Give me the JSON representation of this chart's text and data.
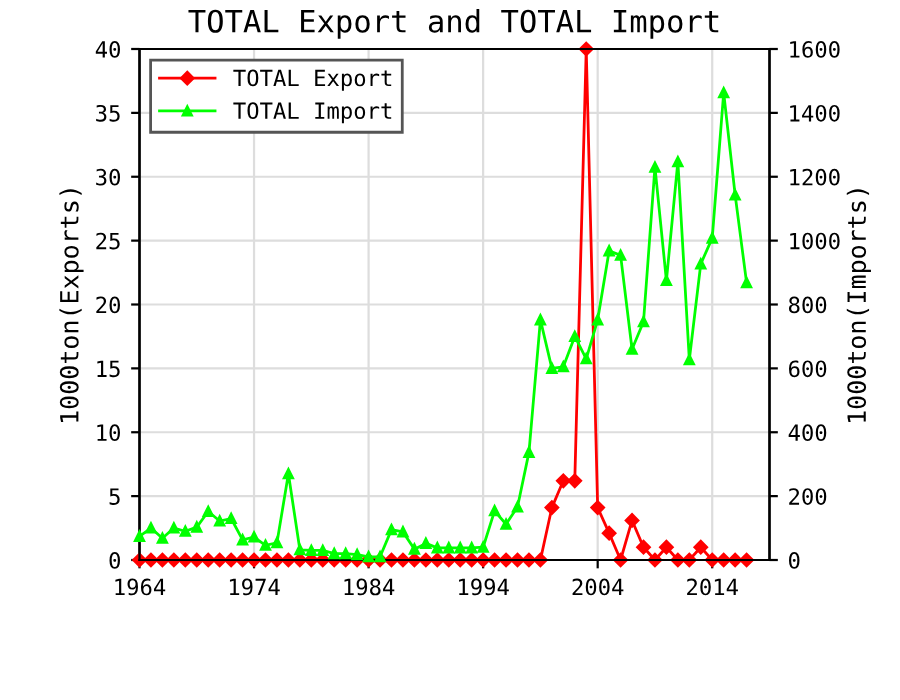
{
  "chart_data": {
    "type": "line",
    "title": "TOTAL Export and TOTAL Import",
    "ylabel": "1000ton(Exports)",
    "y2label": "1000ton(Imports)",
    "x": [
      1964,
      1965,
      1966,
      1967,
      1968,
      1969,
      1970,
      1971,
      1972,
      1973,
      1974,
      1975,
      1976,
      1977,
      1978,
      1979,
      1980,
      1981,
      1982,
      1983,
      1984,
      1985,
      1986,
      1987,
      1988,
      1989,
      1990,
      1991,
      1992,
      1993,
      1994,
      1995,
      1996,
      1997,
      1998,
      1999,
      2000,
      2001,
      2002,
      2003,
      2004,
      2005,
      2006,
      2007,
      2008,
      2009,
      2010,
      2011,
      2012,
      2013,
      2014,
      2015,
      2016,
      2017
    ],
    "series": [
      {
        "name": "TOTAL Export",
        "color": "#ff0000",
        "marker": "diamond",
        "values": [
          0,
          0,
          0,
          0,
          0,
          0,
          0,
          0,
          0,
          0,
          0,
          0,
          0,
          0,
          0,
          0,
          0,
          0,
          0,
          0,
          0,
          0,
          0,
          0,
          0,
          0,
          0,
          0,
          0,
          0,
          0,
          0,
          0,
          0,
          0,
          0,
          4.1,
          6.2,
          6.2,
          40,
          4.1,
          2.1,
          0,
          3.1,
          1.0,
          0,
          1.0,
          0,
          0,
          1.0,
          0,
          0,
          0,
          0
        ]
      },
      {
        "name": "TOTAL Import",
        "color": "#00ff00",
        "marker": "triangle",
        "axis": "y2",
        "values": [
          74,
          100,
          68,
          100,
          90,
          103,
          152,
          122,
          130,
          63,
          72,
          46,
          54,
          270,
          32,
          30,
          30,
          20,
          20,
          17,
          10,
          10,
          95,
          88,
          34,
          52,
          38,
          38,
          38,
          38,
          40,
          154,
          112,
          166,
          337,
          752,
          600,
          605,
          700,
          630,
          752,
          968,
          954,
          660,
          746,
          1230,
          875,
          1247,
          627,
          927,
          1008,
          1463,
          1143,
          868
        ]
      }
    ],
    "xlim": [
      1964,
      2019
    ],
    "xticks": [
      1964,
      1974,
      1984,
      1994,
      2004,
      2014
    ],
    "ylim": [
      0,
      40
    ],
    "yticks": [
      0,
      5,
      10,
      15,
      20,
      25,
      30,
      35,
      40
    ],
    "y2lim": [
      0,
      1600
    ],
    "y2ticks": [
      0,
      200,
      400,
      600,
      800,
      1000,
      1200,
      1400,
      1600
    ],
    "grid": true,
    "legend": "top left",
    "line_style": "solid"
  }
}
